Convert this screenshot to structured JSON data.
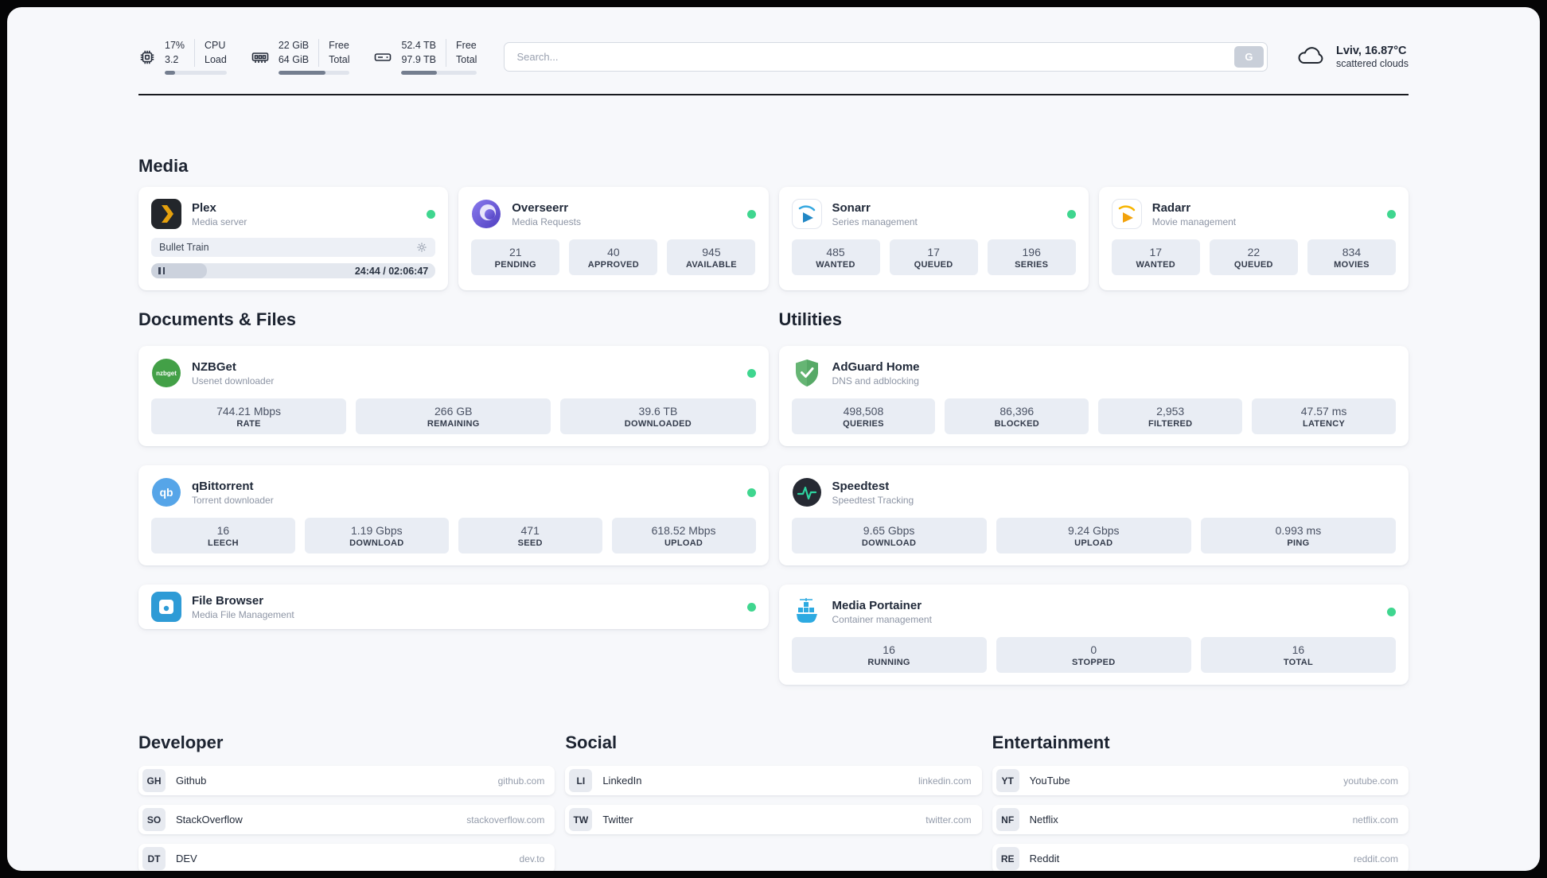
{
  "header": {
    "cpu": {
      "percent": "17%",
      "load": "3.2",
      "label1": "CPU",
      "label2": "Load",
      "progress": 17
    },
    "ram": {
      "free": "22 GiB",
      "total": "64 GiB",
      "label1": "Free",
      "label2": "Total",
      "progress": 66
    },
    "disk": {
      "free": "52.4 TB",
      "total": "97.9 TB",
      "label1": "Free",
      "label2": "Total",
      "progress": 47
    },
    "search": {
      "placeholder": "Search...",
      "button_label": "G"
    },
    "weather": {
      "location": "Lviv, 16.87°C",
      "condition": "scattered clouds"
    }
  },
  "sections": {
    "media": {
      "title": "Media",
      "plex": {
        "name": "Plex",
        "subtitle": "Media server",
        "now_playing": "Bullet Train",
        "time": "24:44 / 02:06:47",
        "progress": 19.5
      },
      "overseerr": {
        "name": "Overseerr",
        "subtitle": "Media Requests",
        "stats": [
          {
            "value": "21",
            "label": "PENDING"
          },
          {
            "value": "40",
            "label": "APPROVED"
          },
          {
            "value": "945",
            "label": "AVAILABLE"
          }
        ]
      },
      "sonarr": {
        "name": "Sonarr",
        "subtitle": "Series management",
        "stats": [
          {
            "value": "485",
            "label": "WANTED"
          },
          {
            "value": "17",
            "label": "QUEUED"
          },
          {
            "value": "196",
            "label": "SERIES"
          }
        ]
      },
      "radarr": {
        "name": "Radarr",
        "subtitle": "Movie management",
        "stats": [
          {
            "value": "17",
            "label": "WANTED"
          },
          {
            "value": "22",
            "label": "QUEUED"
          },
          {
            "value": "834",
            "label": "MOVIES"
          }
        ]
      }
    },
    "documents": {
      "title": "Documents & Files",
      "nzbget": {
        "name": "NZBGet",
        "subtitle": "Usenet downloader",
        "stats": [
          {
            "value": "744.21 Mbps",
            "label": "RATE"
          },
          {
            "value": "266 GB",
            "label": "REMAINING"
          },
          {
            "value": "39.6 TB",
            "label": "DOWNLOADED"
          }
        ]
      },
      "qbittorrent": {
        "name": "qBittorrent",
        "subtitle": "Torrent downloader",
        "stats": [
          {
            "value": "16",
            "label": "LEECH"
          },
          {
            "value": "1.19 Gbps",
            "label": "DOWNLOAD"
          },
          {
            "value": "471",
            "label": "SEED"
          },
          {
            "value": "618.52 Mbps",
            "label": "UPLOAD"
          }
        ]
      },
      "filebrowser": {
        "name": "File Browser",
        "subtitle": "Media File Management"
      }
    },
    "utilities": {
      "title": "Utilities",
      "adguard": {
        "name": "AdGuard Home",
        "subtitle": "DNS and adblocking",
        "stats": [
          {
            "value": "498,508",
            "label": "QUERIES"
          },
          {
            "value": "86,396",
            "label": "BLOCKED"
          },
          {
            "value": "2,953",
            "label": "FILTERED"
          },
          {
            "value": "47.57 ms",
            "label": "LATENCY"
          }
        ]
      },
      "speedtest": {
        "name": "Speedtest",
        "subtitle": "Speedtest Tracking",
        "stats": [
          {
            "value": "9.65 Gbps",
            "label": "DOWNLOAD"
          },
          {
            "value": "9.24 Gbps",
            "label": "UPLOAD"
          },
          {
            "value": "0.993 ms",
            "label": "PING"
          }
        ]
      },
      "portainer": {
        "name": "Media Portainer",
        "subtitle": "Container management",
        "stats": [
          {
            "value": "16",
            "label": "RUNNING"
          },
          {
            "value": "0",
            "label": "STOPPED"
          },
          {
            "value": "16",
            "label": "TOTAL"
          }
        ]
      }
    },
    "developer": {
      "title": "Developer",
      "links": [
        {
          "badge": "GH",
          "name": "Github",
          "url": "github.com"
        },
        {
          "badge": "SO",
          "name": "StackOverflow",
          "url": "stackoverflow.com"
        },
        {
          "badge": "DT",
          "name": "DEV",
          "url": "dev.to"
        }
      ]
    },
    "social": {
      "title": "Social",
      "links": [
        {
          "badge": "LI",
          "name": "LinkedIn",
          "url": "linkedin.com"
        },
        {
          "badge": "TW",
          "name": "Twitter",
          "url": "twitter.com"
        }
      ]
    },
    "entertainment": {
      "title": "Entertainment",
      "links": [
        {
          "badge": "YT",
          "name": "YouTube",
          "url": "youtube.com"
        },
        {
          "badge": "NF",
          "name": "Netflix",
          "url": "netflix.com"
        },
        {
          "badge": "RE",
          "name": "Reddit",
          "url": "reddit.com"
        }
      ]
    }
  },
  "colors": {
    "status_green": "#3fd68f",
    "plex_orange": "#e5a00d",
    "accent_blue": "#2daae1",
    "adguard_green": "#66b574"
  }
}
